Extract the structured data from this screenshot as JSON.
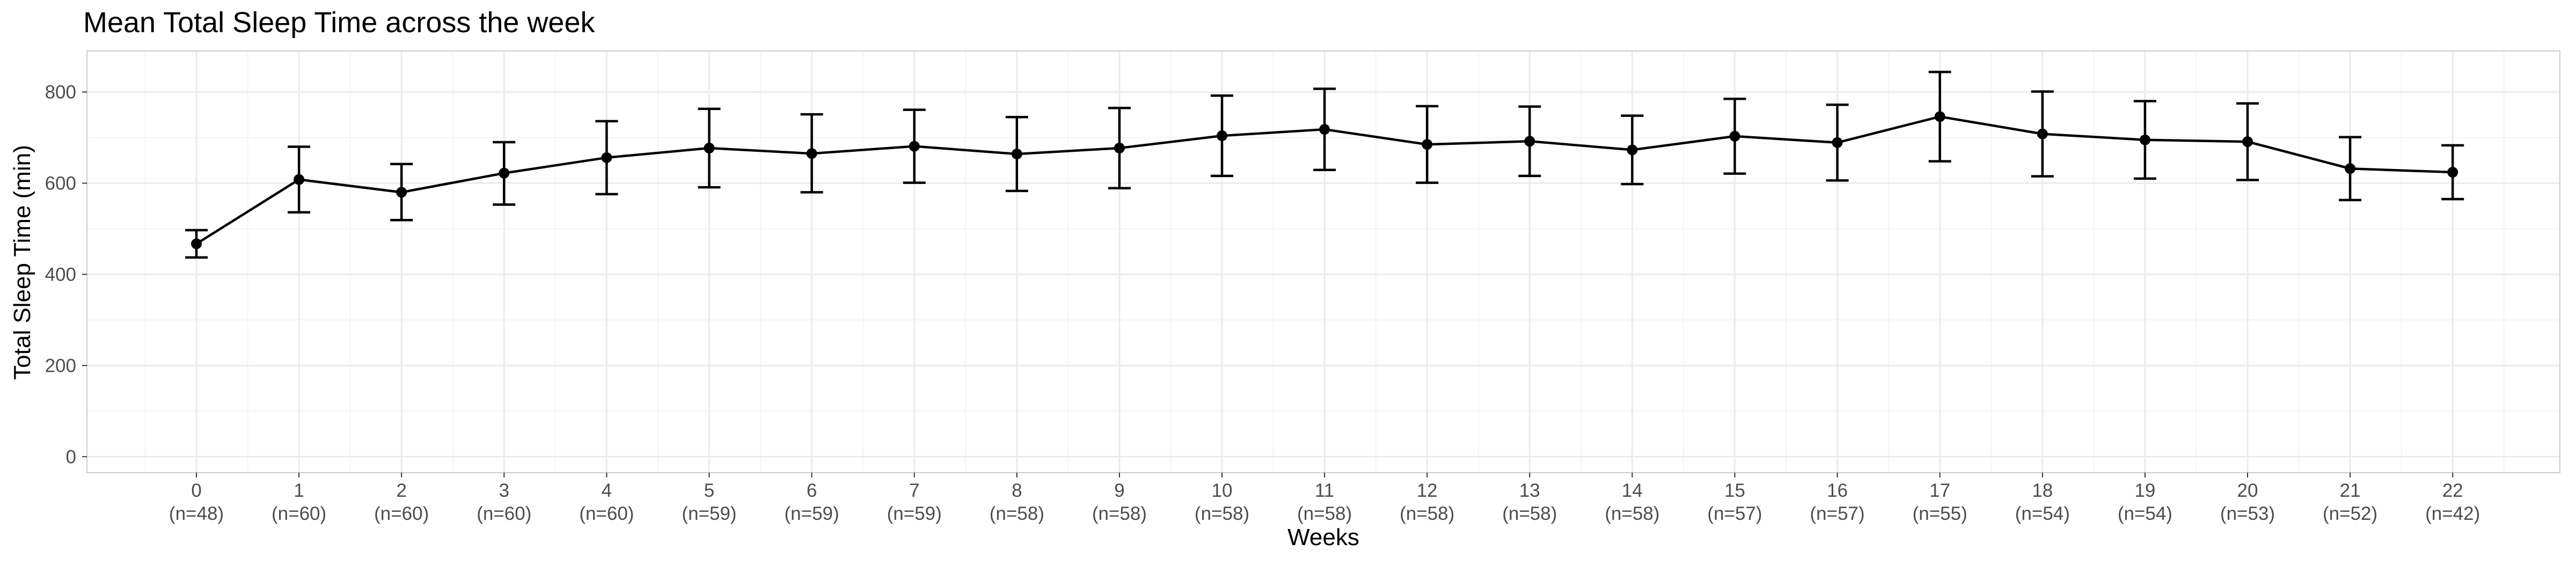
{
  "chart_data": {
    "type": "line",
    "title": "Mean Total Sleep Time across the week",
    "xlabel": "Weeks",
    "ylabel": "Total Sleep Time (min)",
    "ylim": [
      -35,
      890
    ],
    "yticks": [
      0,
      200,
      400,
      600,
      800
    ],
    "grid": true,
    "x": [
      0,
      1,
      2,
      3,
      4,
      5,
      6,
      7,
      8,
      9,
      10,
      11,
      12,
      13,
      14,
      15,
      16,
      17,
      18,
      19,
      20,
      21,
      22
    ],
    "x_sample_labels": [
      "(n=48)",
      "(n=60)",
      "(n=60)",
      "(n=60)",
      "(n=60)",
      "(n=59)",
      "(n=59)",
      "(n=59)",
      "(n=58)",
      "(n=58)",
      "(n=58)",
      "(n=58)",
      "(n=58)",
      "(n=58)",
      "(n=58)",
      "(n=57)",
      "(n=57)",
      "(n=55)",
      "(n=54)",
      "(n=54)",
      "(n=53)",
      "(n=52)",
      "(n=42)"
    ],
    "series": [
      {
        "values": [
          467,
          608,
          580,
          622,
          656,
          677,
          665,
          681,
          664,
          677,
          704,
          718,
          685,
          692,
          673,
          703,
          689,
          746,
          708,
          695,
          691,
          632,
          624
        ],
        "error_low": [
          437,
          536,
          519,
          553,
          576,
          591,
          580,
          601,
          583,
          589,
          616,
          629,
          601,
          616,
          598,
          621,
          606,
          648,
          615,
          610,
          607,
          563,
          565
        ],
        "error_high": [
          497,
          680,
          642,
          690,
          736,
          763,
          751,
          761,
          745,
          765,
          792,
          807,
          769,
          768,
          748,
          785,
          772,
          844,
          801,
          780,
          775,
          701,
          683
        ]
      }
    ]
  }
}
